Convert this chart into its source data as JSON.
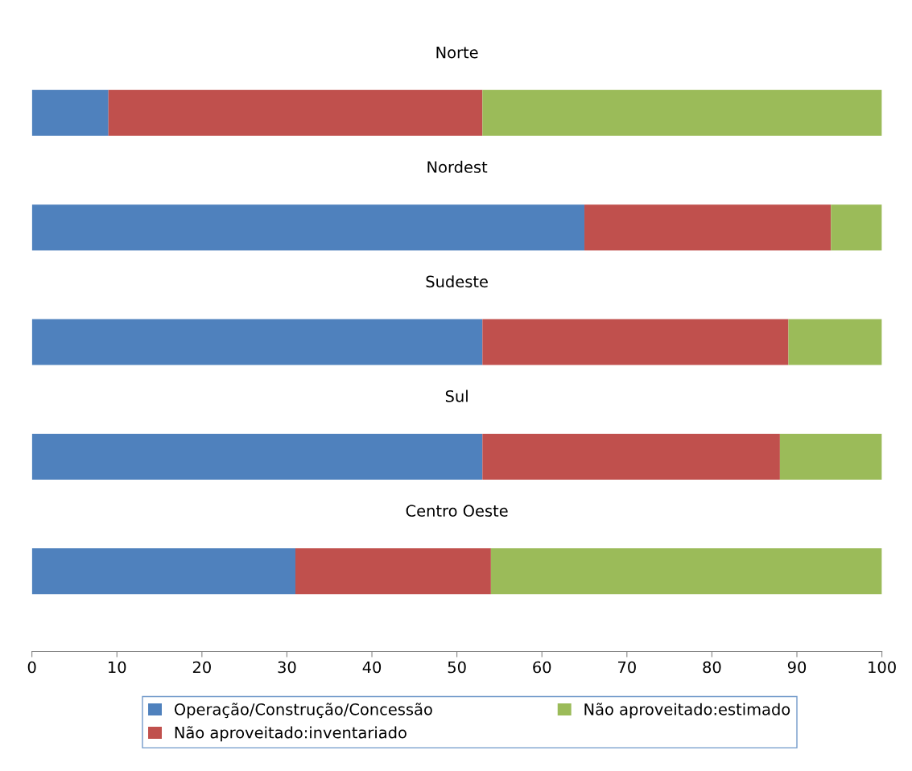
{
  "chart_data": {
    "type": "bar",
    "orientation": "horizontal",
    "stacked": true,
    "categories": [
      "Norte",
      "Nordest",
      "Sudeste",
      "Sul",
      "Centro Oeste"
    ],
    "series": [
      {
        "name": "Operação/Construção/Concessão",
        "color": "#4f81bd",
        "values": [
          9,
          65,
          53,
          53,
          31
        ]
      },
      {
        "name": "Não aproveitado:inventariado",
        "color": "#c0504d",
        "values": [
          44,
          29,
          36,
          35,
          23
        ]
      },
      {
        "name": "Não aproveitado:estimado",
        "color": "#9bbb59",
        "values": [
          47,
          6,
          11,
          12,
          46
        ]
      }
    ],
    "xlim": [
      0,
      100
    ],
    "xticks": [
      0,
      10,
      20,
      30,
      40,
      50,
      60,
      70,
      80,
      90,
      100
    ],
    "grid": false,
    "legend": "bottom"
  }
}
